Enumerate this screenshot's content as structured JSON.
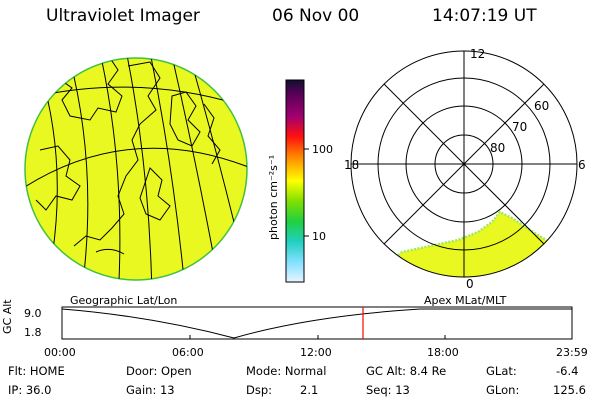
{
  "header": {
    "title": "Ultraviolet Imager",
    "date": "06 Nov 00",
    "time": "14:07:19 UT"
  },
  "geo_panel": {
    "label": "Geographic Lat/Lon"
  },
  "polar_panel": {
    "label": "Apex MLat/MLT",
    "mlt_labels": [
      "12",
      "18",
      "6",
      "0"
    ],
    "mlat_labels": [
      "60",
      "70",
      "80"
    ]
  },
  "colorbar": {
    "unit_label": "photon cm⁻²s⁻¹",
    "tick_labels": [
      "100",
      "10"
    ],
    "colors": [
      "#101030",
      "#5a0058",
      "#a00070",
      "#ff1010",
      "#ff7000",
      "#ffb000",
      "#ffff00",
      "#80e000",
      "#20d040",
      "#20d0c0",
      "#80e0ff",
      "#e8f4ff"
    ]
  },
  "timeline": {
    "y_axis_label": "GC Alt",
    "y_ticks": [
      "9.0",
      "1.8"
    ],
    "x_ticks": [
      "00:00",
      "06:00",
      "12:00",
      "18:00",
      "23:59"
    ],
    "marker_time": "14:07",
    "marker_color": "#ff0000"
  },
  "info": {
    "filter": "Flt: HOME",
    "ip": "IP: 36.0",
    "door": "Door: Open",
    "gain": "Gain: 13",
    "mode": "Mode: Normal",
    "dsp_label": "Dsp:",
    "dsp_value": "2.1",
    "gc_alt": "GC Alt: 8.4 Re",
    "seq": "Seq: 13",
    "glat_label": "GLat:",
    "glat_value": "-6.4",
    "glon_label": "GLon:",
    "glon_value": "125.6"
  },
  "colors": {
    "fill": "#e8f820",
    "limb": "#40c040",
    "edge_speckle": "#a0e860"
  }
}
